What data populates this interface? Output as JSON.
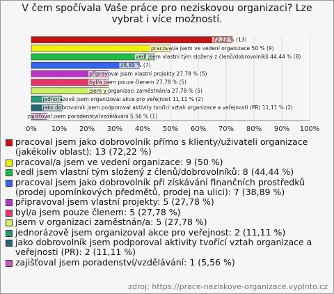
{
  "chart_data": {
    "type": "bar",
    "orientation": "horizontal",
    "title": "V čem spočívala Vaše práce pro neziskovou organizaci? Lze vybrat i více možností.",
    "categories": [
      "pracoval jsem jako dobrovolník přímo s klienty/uživateli organizace (jakékoliv oblast): 13 (72,22 %)",
      "pracoval/a jsem ve vedení organizace: 9 (50 %)",
      "vedl jsem vlastní tým složený z členů/dobrovolníků: 8 (44,44 %)",
      "pracoval jsem jako dobrovolník při získávání finančních prostředků (prodej upomínkových předmětů, prodej na ulici): 7 (38,89 %)",
      "připravoval jsem vlastní projekty: 5 (27,78 %)",
      "byl/a jsem pouze členem: 5 (27,78 %)",
      "jsem v organizaci zaměstnán/a: 5 (27,78 %)",
      "jednorázově jsem organizoval akce pro veřejnost: 2 (11,11 %)",
      "jako dobrovolník jsem podporoval aktivity tvořící vztah organizace a veřejnosti (PR): 2 (11,11 %)",
      "zajišťoval jsem poradenství/vzdělávání: 1 (5,56 %)"
    ],
    "values": [
      72.22,
      50,
      44.44,
      38.89,
      27.78,
      27.78,
      27.78,
      11.11,
      11.11,
      5.56
    ],
    "value_labels": [
      "72,22 % (13)",
      "pracoval/a jsem ve vedení organizace 50 % (9)",
      "vedl jsem vlastní tým složený z členů/dobrovolníků 44,44 % (8)",
      "38,89 % (7)",
      "připravoval jsem vlastní projekty 27,78 % (5)",
      "byl/a jsem pouze členem 27,78 % (5)",
      "jsem v organizaci zaměstnán/a 27,78 % (5)",
      "jednorázově jsem organizoval akce pro veřejnost 11,11 % (2)",
      "jako dobrovolník jsem podporoval aktivity tvořící vztah organizace a veřejnosti (PR) 11,11 % (2)",
      "zajišťoval jsem poradenství/vzdělávání 5,56 % (1)"
    ],
    "colors": [
      "#cc1111",
      "#f2f200",
      "#22bb44",
      "#3366ee",
      "#bb33cc",
      "#ee3366",
      "#ccf066",
      "#229977",
      "#226677",
      "#cc55cc"
    ],
    "xlim": [
      0,
      100
    ],
    "xticks": [
      {
        "value": 0,
        "label": "0%"
      },
      {
        "value": 10,
        "label": "10%"
      },
      {
        "value": 20,
        "label": "20%"
      },
      {
        "value": 30,
        "label": "30%"
      },
      {
        "value": 40,
        "label": "40%"
      },
      {
        "value": 50,
        "label": "50%"
      },
      {
        "value": 60,
        "label": "60%"
      },
      {
        "value": 70,
        "label": "70%"
      },
      {
        "value": 80,
        "label": "80%"
      },
      {
        "value": 90,
        "label": "90%"
      },
      {
        "value": 100,
        "label": "100%"
      }
    ],
    "grid": true,
    "source": "zdroj: https://prace-neziskove-organizace.vyplnto.cz"
  }
}
